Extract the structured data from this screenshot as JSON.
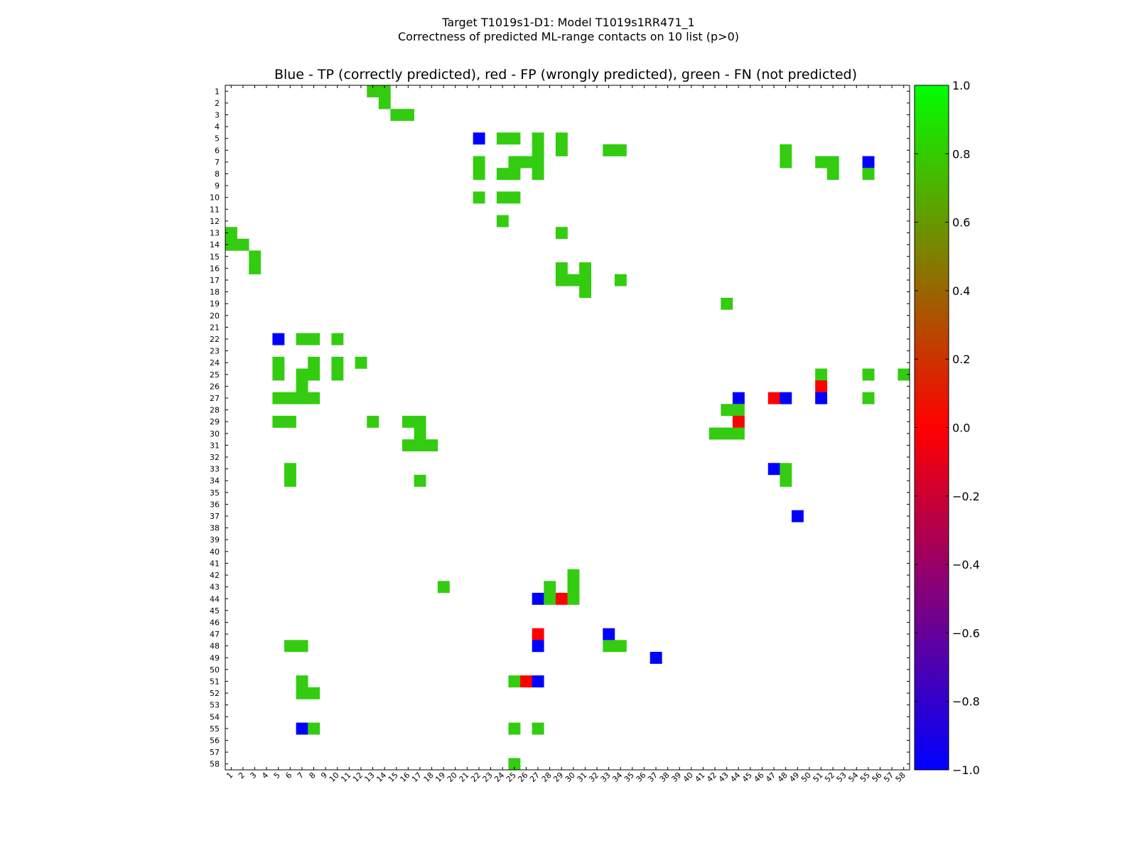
{
  "chart_data": {
    "type": "heatmap",
    "suptitle_line1": "Target T1019s1-D1: Model T1019s1RR471_1",
    "suptitle_line2": "Correctness of predicted ML-range contacts on 10 list (p>0)",
    "title": "Blue - TP (correctly predicted), red - FP (wrongly predicted), green - FN (not predicted)",
    "xlabel": "",
    "ylabel": "",
    "x_ticks": [
      "1",
      "2",
      "3",
      "4",
      "5",
      "6",
      "7",
      "8",
      "9",
      "10",
      "11",
      "12",
      "13",
      "14",
      "15",
      "16",
      "17",
      "18",
      "19",
      "20",
      "21",
      "22",
      "23",
      "24",
      "25",
      "26",
      "27",
      "28",
      "29",
      "30",
      "31",
      "32",
      "33",
      "34",
      "35",
      "36",
      "37",
      "38",
      "39",
      "40",
      "41",
      "42",
      "43",
      "44",
      "45",
      "46",
      "47",
      "48",
      "49",
      "50",
      "51",
      "52",
      "53",
      "54",
      "55",
      "56",
      "57",
      "58"
    ],
    "y_ticks": [
      "1",
      "2",
      "3",
      "4",
      "5",
      "6",
      "7",
      "8",
      "9",
      "10",
      "11",
      "12",
      "13",
      "14",
      "15",
      "16",
      "17",
      "18",
      "19",
      "20",
      "21",
      "22",
      "23",
      "24",
      "25",
      "26",
      "27",
      "28",
      "29",
      "30",
      "31",
      "32",
      "33",
      "34",
      "35",
      "36",
      "37",
      "38",
      "39",
      "40",
      "41",
      "42",
      "43",
      "44",
      "45",
      "46",
      "47",
      "48",
      "49",
      "50",
      "51",
      "52",
      "53",
      "54",
      "55",
      "56",
      "57",
      "58"
    ],
    "colorbar": {
      "min": -1.0,
      "max": 1.0,
      "ticks": [
        "1.0",
        "0.8",
        "0.6",
        "0.4",
        "0.2",
        "0.0",
        "−0.2",
        "−0.4",
        "−0.6",
        "−0.8",
        "−1.0"
      ]
    },
    "legend": {
      "TP": "blue",
      "FP": "red",
      "FN": "green"
    },
    "colors": {
      "TP": "#0000ff",
      "FP": "#ff0000",
      "FN": "#33cc11"
    },
    "cells": [
      {
        "row": 1,
        "col": 13,
        "v": "FN"
      },
      {
        "row": 1,
        "col": 14,
        "v": "FN"
      },
      {
        "row": 2,
        "col": 14,
        "v": "FN"
      },
      {
        "row": 3,
        "col": 15,
        "v": "FN"
      },
      {
        "row": 3,
        "col": 16,
        "v": "FN"
      },
      {
        "row": 5,
        "col": 22,
        "v": "TP"
      },
      {
        "row": 5,
        "col": 24,
        "v": "FN"
      },
      {
        "row": 5,
        "col": 25,
        "v": "FN"
      },
      {
        "row": 5,
        "col": 27,
        "v": "FN"
      },
      {
        "row": 5,
        "col": 29,
        "v": "FN"
      },
      {
        "row": 6,
        "col": 27,
        "v": "FN"
      },
      {
        "row": 6,
        "col": 29,
        "v": "FN"
      },
      {
        "row": 6,
        "col": 33,
        "v": "FN"
      },
      {
        "row": 6,
        "col": 34,
        "v": "FN"
      },
      {
        "row": 6,
        "col": 48,
        "v": "FN"
      },
      {
        "row": 7,
        "col": 22,
        "v": "FN"
      },
      {
        "row": 7,
        "col": 25,
        "v": "FN"
      },
      {
        "row": 7,
        "col": 26,
        "v": "FN"
      },
      {
        "row": 7,
        "col": 27,
        "v": "FN"
      },
      {
        "row": 7,
        "col": 48,
        "v": "FN"
      },
      {
        "row": 7,
        "col": 51,
        "v": "FN"
      },
      {
        "row": 7,
        "col": 52,
        "v": "FN"
      },
      {
        "row": 7,
        "col": 55,
        "v": "TP"
      },
      {
        "row": 8,
        "col": 22,
        "v": "FN"
      },
      {
        "row": 8,
        "col": 24,
        "v": "FN"
      },
      {
        "row": 8,
        "col": 25,
        "v": "FN"
      },
      {
        "row": 8,
        "col": 27,
        "v": "FN"
      },
      {
        "row": 8,
        "col": 52,
        "v": "FN"
      },
      {
        "row": 8,
        "col": 55,
        "v": "FN"
      },
      {
        "row": 10,
        "col": 22,
        "v": "FN"
      },
      {
        "row": 10,
        "col": 24,
        "v": "FN"
      },
      {
        "row": 10,
        "col": 25,
        "v": "FN"
      },
      {
        "row": 12,
        "col": 24,
        "v": "FN"
      },
      {
        "row": 13,
        "col": 1,
        "v": "FN"
      },
      {
        "row": 13,
        "col": 29,
        "v": "FN"
      },
      {
        "row": 14,
        "col": 1,
        "v": "FN"
      },
      {
        "row": 14,
        "col": 2,
        "v": "FN"
      },
      {
        "row": 15,
        "col": 3,
        "v": "FN"
      },
      {
        "row": 16,
        "col": 3,
        "v": "FN"
      },
      {
        "row": 16,
        "col": 29,
        "v": "FN"
      },
      {
        "row": 16,
        "col": 31,
        "v": "FN"
      },
      {
        "row": 17,
        "col": 29,
        "v": "FN"
      },
      {
        "row": 17,
        "col": 30,
        "v": "FN"
      },
      {
        "row": 17,
        "col": 31,
        "v": "FN"
      },
      {
        "row": 17,
        "col": 34,
        "v": "FN"
      },
      {
        "row": 18,
        "col": 31,
        "v": "FN"
      },
      {
        "row": 19,
        "col": 43,
        "v": "FN"
      },
      {
        "row": 22,
        "col": 5,
        "v": "TP"
      },
      {
        "row": 22,
        "col": 7,
        "v": "FN"
      },
      {
        "row": 22,
        "col": 8,
        "v": "FN"
      },
      {
        "row": 22,
        "col": 10,
        "v": "FN"
      },
      {
        "row": 24,
        "col": 5,
        "v": "FN"
      },
      {
        "row": 24,
        "col": 8,
        "v": "FN"
      },
      {
        "row": 24,
        "col": 10,
        "v": "FN"
      },
      {
        "row": 24,
        "col": 12,
        "v": "FN"
      },
      {
        "row": 25,
        "col": 5,
        "v": "FN"
      },
      {
        "row": 25,
        "col": 7,
        "v": "FN"
      },
      {
        "row": 25,
        "col": 8,
        "v": "FN"
      },
      {
        "row": 25,
        "col": 10,
        "v": "FN"
      },
      {
        "row": 25,
        "col": 51,
        "v": "FN"
      },
      {
        "row": 25,
        "col": 55,
        "v": "FN"
      },
      {
        "row": 25,
        "col": 58,
        "v": "FN"
      },
      {
        "row": 26,
        "col": 7,
        "v": "FN"
      },
      {
        "row": 26,
        "col": 51,
        "v": "FP"
      },
      {
        "row": 27,
        "col": 5,
        "v": "FN"
      },
      {
        "row": 27,
        "col": 6,
        "v": "FN"
      },
      {
        "row": 27,
        "col": 7,
        "v": "FN"
      },
      {
        "row": 27,
        "col": 8,
        "v": "FN"
      },
      {
        "row": 27,
        "col": 44,
        "v": "TP"
      },
      {
        "row": 27,
        "col": 47,
        "v": "FP"
      },
      {
        "row": 27,
        "col": 48,
        "v": "TP"
      },
      {
        "row": 27,
        "col": 51,
        "v": "TP"
      },
      {
        "row": 27,
        "col": 55,
        "v": "FN"
      },
      {
        "row": 28,
        "col": 43,
        "v": "FN"
      },
      {
        "row": 28,
        "col": 44,
        "v": "FN"
      },
      {
        "row": 29,
        "col": 5,
        "v": "FN"
      },
      {
        "row": 29,
        "col": 6,
        "v": "FN"
      },
      {
        "row": 29,
        "col": 13,
        "v": "FN"
      },
      {
        "row": 29,
        "col": 16,
        "v": "FN"
      },
      {
        "row": 29,
        "col": 17,
        "v": "FN"
      },
      {
        "row": 29,
        "col": 44,
        "v": "FP"
      },
      {
        "row": 30,
        "col": 17,
        "v": "FN"
      },
      {
        "row": 30,
        "col": 42,
        "v": "FN"
      },
      {
        "row": 30,
        "col": 43,
        "v": "FN"
      },
      {
        "row": 30,
        "col": 44,
        "v": "FN"
      },
      {
        "row": 31,
        "col": 16,
        "v": "FN"
      },
      {
        "row": 31,
        "col": 17,
        "v": "FN"
      },
      {
        "row": 31,
        "col": 18,
        "v": "FN"
      },
      {
        "row": 33,
        "col": 6,
        "v": "FN"
      },
      {
        "row": 33,
        "col": 47,
        "v": "TP"
      },
      {
        "row": 33,
        "col": 48,
        "v": "FN"
      },
      {
        "row": 34,
        "col": 6,
        "v": "FN"
      },
      {
        "row": 34,
        "col": 17,
        "v": "FN"
      },
      {
        "row": 34,
        "col": 48,
        "v": "FN"
      },
      {
        "row": 37,
        "col": 49,
        "v": "TP"
      },
      {
        "row": 42,
        "col": 30,
        "v": "FN"
      },
      {
        "row": 43,
        "col": 19,
        "v": "FN"
      },
      {
        "row": 43,
        "col": 28,
        "v": "FN"
      },
      {
        "row": 43,
        "col": 30,
        "v": "FN"
      },
      {
        "row": 44,
        "col": 27,
        "v": "TP"
      },
      {
        "row": 44,
        "col": 28,
        "v": "FN"
      },
      {
        "row": 44,
        "col": 29,
        "v": "FP"
      },
      {
        "row": 44,
        "col": 30,
        "v": "FN"
      },
      {
        "row": 47,
        "col": 27,
        "v": "FP"
      },
      {
        "row": 47,
        "col": 33,
        "v": "TP"
      },
      {
        "row": 48,
        "col": 6,
        "v": "FN"
      },
      {
        "row": 48,
        "col": 7,
        "v": "FN"
      },
      {
        "row": 48,
        "col": 27,
        "v": "TP"
      },
      {
        "row": 48,
        "col": 33,
        "v": "FN"
      },
      {
        "row": 48,
        "col": 34,
        "v": "FN"
      },
      {
        "row": 49,
        "col": 37,
        "v": "TP"
      },
      {
        "row": 51,
        "col": 7,
        "v": "FN"
      },
      {
        "row": 51,
        "col": 25,
        "v": "FN"
      },
      {
        "row": 51,
        "col": 26,
        "v": "FP"
      },
      {
        "row": 51,
        "col": 27,
        "v": "TP"
      },
      {
        "row": 52,
        "col": 7,
        "v": "FN"
      },
      {
        "row": 52,
        "col": 8,
        "v": "FN"
      },
      {
        "row": 55,
        "col": 7,
        "v": "TP"
      },
      {
        "row": 55,
        "col": 8,
        "v": "FN"
      },
      {
        "row": 55,
        "col": 25,
        "v": "FN"
      },
      {
        "row": 55,
        "col": 27,
        "v": "FN"
      },
      {
        "row": 58,
        "col": 25,
        "v": "FN"
      }
    ]
  }
}
